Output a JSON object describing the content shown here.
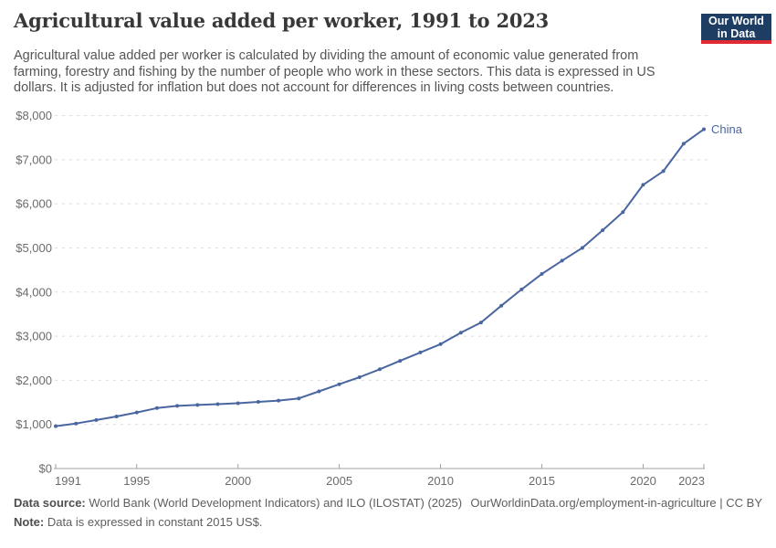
{
  "header": {
    "title": "Agricultural value added per worker, 1991 to 2023",
    "subtitle": "Agricultural value added per worker is calculated by dividing the amount of economic value generated from\nfarming, forestry and fishing by the number of people who work in these sectors. This data is expressed in US\ndollars. It is adjusted for inflation but does not account for differences in living costs between countries.",
    "logo": {
      "line1": "Our World",
      "line2": "in Data",
      "bg_color": "#1d3d63",
      "accent_color": "#e02b35"
    }
  },
  "chart_data": {
    "type": "line",
    "title": "Agricultural value added per worker, 1991 to 2023",
    "xlabel": "",
    "ylabel": "",
    "ylim": [
      0,
      8000
    ],
    "grid": "horizontal-dashed",
    "legend_position": "end-of-line",
    "yticks": {
      "values": [
        0,
        1000,
        2000,
        3000,
        4000,
        5000,
        6000,
        7000,
        8000
      ],
      "labels": [
        "$0",
        "$1,000",
        "$2,000",
        "$3,000",
        "$4,000",
        "$5,000",
        "$6,000",
        "$7,000",
        "$8,000"
      ]
    },
    "xticks": [
      1991,
      1995,
      2000,
      2005,
      2010,
      2015,
      2020,
      2023
    ],
    "series": [
      {
        "name": "China",
        "color": "#4a66a0",
        "x": [
          1991,
          1992,
          1993,
          1994,
          1995,
          1996,
          1997,
          1998,
          1999,
          2000,
          2001,
          2002,
          2003,
          2004,
          2005,
          2006,
          2007,
          2008,
          2009,
          2010,
          2011,
          2012,
          2013,
          2014,
          2015,
          2016,
          2017,
          2018,
          2019,
          2020,
          2021,
          2022,
          2023
        ],
        "values": [
          960,
          1020,
          1100,
          1180,
          1270,
          1370,
          1420,
          1440,
          1460,
          1480,
          1510,
          1540,
          1590,
          1750,
          1910,
          2070,
          2250,
          2440,
          2630,
          2820,
          3080,
          3310,
          3690,
          4060,
          4410,
          4710,
          5000,
          5400,
          5810,
          6430,
          6740,
          7360,
          7690
        ]
      }
    ]
  },
  "footer": {
    "source_label": "Data source:",
    "source_text": " World Bank (World Development Indicators) and ILO (ILOSTAT) (2025)",
    "link": "OurWorldinData.org/employment-in-agriculture | CC BY",
    "note_label": "Note:",
    "note_text": " Data is expressed in constant 2015 US$."
  }
}
